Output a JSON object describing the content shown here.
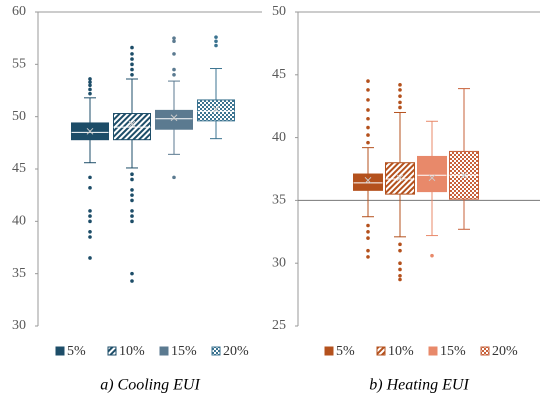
{
  "chart_data": [
    {
      "type": "box",
      "title": "a)  Cooling  EUI",
      "ylim": [
        30,
        60
      ],
      "yticks": [
        30,
        35,
        40,
        45,
        50,
        55,
        60
      ],
      "top_border": true,
      "series": [
        {
          "name": "5%",
          "color": "#1d4d68",
          "pattern": "solid",
          "whisker_low": 45.6,
          "q1": 47.8,
          "median": 48.5,
          "q3": 49.4,
          "whisker_high": 51.8,
          "mean": 48.6,
          "outliers": [
            52.2,
            52.6,
            53.0,
            53.3,
            53.6,
            44.2,
            43.2,
            41.0,
            40.5,
            40.0,
            39.0,
            38.5,
            36.5
          ]
        },
        {
          "name": "10%",
          "color": "#1d4d68",
          "pattern": "diagonal",
          "whisker_low": 45.1,
          "q1": 47.8,
          "median": 49.0,
          "q3": 50.3,
          "whisker_high": 53.6,
          "mean": 49.3,
          "outliers": [
            54.0,
            54.5,
            55.0,
            55.5,
            56.0,
            56.6,
            44.5,
            44.0,
            43.0,
            42.5,
            42.0,
            41.0,
            40.5,
            40.0,
            35.0,
            34.3
          ]
        },
        {
          "name": "15%",
          "color": "#5b7a90",
          "pattern": "solid",
          "whisker_low": 46.4,
          "q1": 48.8,
          "median": 49.8,
          "q3": 50.6,
          "whisker_high": 53.4,
          "mean": 49.9,
          "outliers": [
            54.0,
            54.5,
            56.0,
            57.2,
            57.5,
            44.2
          ]
        },
        {
          "name": "20%",
          "color": "#3b7390",
          "pattern": "checker",
          "whisker_low": 47.9,
          "q1": 49.6,
          "median": 50.5,
          "q3": 51.6,
          "whisker_high": 54.6,
          "mean": 50.7,
          "outliers": [
            56.8,
            57.2,
            57.6
          ]
        }
      ]
    },
    {
      "type": "box",
      "title": "b)  Heating  EUI",
      "ylim": [
        25,
        50
      ],
      "yticks": [
        25,
        30,
        35,
        40,
        45,
        50
      ],
      "top_border": true,
      "x_axis_at": 35,
      "series": [
        {
          "name": "5%",
          "color": "#b4511d",
          "pattern": "solid",
          "whisker_low": 33.7,
          "q1": 35.8,
          "median": 36.4,
          "q3": 37.1,
          "whisker_high": 39.2,
          "mean": 36.6,
          "outliers": [
            39.6,
            40.2,
            40.8,
            41.5,
            42.2,
            43.0,
            43.8,
            44.5,
            33.0,
            32.5,
            32.0,
            31.0,
            30.5
          ]
        },
        {
          "name": "10%",
          "color": "#b4511d",
          "pattern": "diagonal",
          "whisker_low": 32.1,
          "q1": 35.5,
          "median": 36.7,
          "q3": 38.0,
          "whisker_high": 42.0,
          "mean": 36.8,
          "outliers": [
            42.4,
            42.8,
            43.3,
            43.8,
            44.2,
            31.5,
            31.0,
            30.0,
            29.5,
            29.0,
            28.7
          ]
        },
        {
          "name": "15%",
          "color": "#e8896a",
          "pattern": "solid",
          "whisker_low": 32.2,
          "q1": 35.7,
          "median": 37.0,
          "q3": 38.5,
          "whisker_high": 41.3,
          "mean": 36.8,
          "outliers": [
            30.6
          ]
        },
        {
          "name": "20%",
          "color": "#c7613a",
          "pattern": "checker",
          "whisker_low": 32.7,
          "q1": 35.1,
          "median": 37.0,
          "q3": 38.9,
          "whisker_high": 43.9,
          "mean": 37.0,
          "outliers": []
        }
      ]
    }
  ]
}
